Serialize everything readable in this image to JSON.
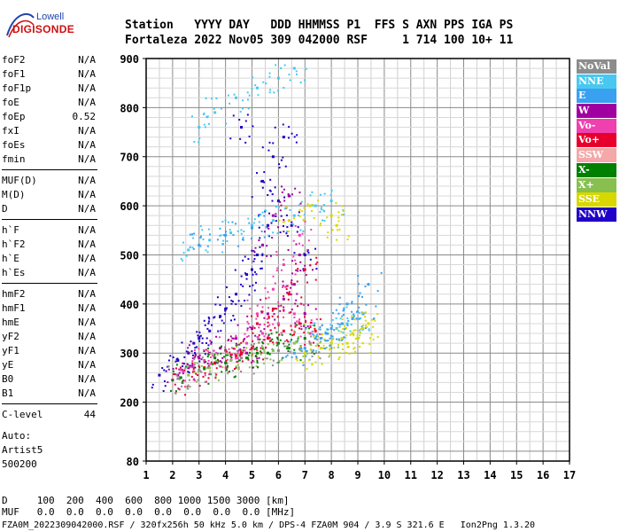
{
  "logo": {
    "line1": "Lowell",
    "line2": "DIGISONDE"
  },
  "header": {
    "row1": "Station   YYYY DAY   DDD HHMMSS P1  FFS S AXN PPS IGA PS",
    "row2": "Fortaleza 2022 Nov05 309 042000 RSF     1 714 100 10+ 11"
  },
  "params": {
    "groups": [
      [
        [
          "foF2",
          "N/A"
        ],
        [
          "foF1",
          "N/A"
        ],
        [
          "foF1p",
          "N/A"
        ],
        [
          "foE",
          "N/A"
        ],
        [
          "foEp",
          "0.52"
        ],
        [
          "fxI",
          "N/A"
        ],
        [
          "foEs",
          "N/A"
        ],
        [
          "fmin",
          "N/A"
        ]
      ],
      [
        [
          "MUF(D)",
          "N/A"
        ],
        [
          "M(D)",
          "N/A"
        ],
        [
          "D",
          "N/A"
        ]
      ],
      [
        [
          "h`F",
          "N/A"
        ],
        [
          "h`F2",
          "N/A"
        ],
        [
          "h`E",
          "N/A"
        ],
        [
          "h`Es",
          "N/A"
        ]
      ],
      [
        [
          "hmF2",
          "N/A"
        ],
        [
          "hmF1",
          "N/A"
        ],
        [
          "hmE",
          "N/A"
        ],
        [
          "yF2",
          "N/A"
        ],
        [
          "yF1",
          "N/A"
        ],
        [
          "yE",
          "N/A"
        ],
        [
          "B0",
          "N/A"
        ],
        [
          "B1",
          "N/A"
        ]
      ],
      [
        [
          "C-level",
          "44"
        ]
      ]
    ]
  },
  "auto": {
    "line1": "Auto:",
    "line2": "Artist5",
    "line3": "500200"
  },
  "legend": [
    {
      "label": "NoVal",
      "color": "#8c8c8c"
    },
    {
      "label": "NNE",
      "color": "#48c8f0"
    },
    {
      "label": "E",
      "color": "#3aa0f0"
    },
    {
      "label": "W",
      "color": "#a000a0"
    },
    {
      "label": "Vo-",
      "color": "#f040b0"
    },
    {
      "label": "Vo+",
      "color": "#e8002c"
    },
    {
      "label": "SSW",
      "color": "#f4a8a8"
    },
    {
      "label": "X-",
      "color": "#008000"
    },
    {
      "label": "X+",
      "color": "#88c050"
    },
    {
      "label": "SSE",
      "color": "#d8d800"
    },
    {
      "label": "NNW",
      "color": "#2000c8"
    }
  ],
  "footer": {
    "d_row": "D     100  200  400  600  800 1000 1500 3000 [km]",
    "muf_row": "MUF   0.0  0.0  0.0  0.0  0.0  0.0  0.0  0.0 [MHz]",
    "file_line": "FZA0M_2022309042000.RSF / 320fx256h 50 kHz 5.0 km / DPS-4 FZA0M 904 / 3.9 S 321.6 E   Ion2Png 1.3.20"
  },
  "chart_data": {
    "type": "scatter",
    "xlim": [
      1,
      17
    ],
    "ylim": [
      80,
      900
    ],
    "x_ticks": [
      1,
      2,
      3,
      4,
      5,
      6,
      7,
      8,
      9,
      10,
      11,
      12,
      13,
      14,
      15,
      16,
      17
    ],
    "y_ticks": [
      80,
      200,
      300,
      400,
      500,
      600,
      700,
      800,
      900
    ],
    "grid": true,
    "legend_position": "right",
    "series": [
      {
        "name": "NNW",
        "color": "#2000c8",
        "points": [
          [
            1.5,
            255
          ],
          [
            2.2,
            285
          ],
          [
            2.8,
            320
          ],
          [
            3.4,
            345
          ],
          [
            3.8,
            375
          ],
          [
            4.4,
            420
          ],
          [
            4.8,
            460
          ],
          [
            5.2,
            500
          ],
          [
            5.6,
            560
          ],
          [
            6.0,
            610
          ],
          [
            6.5,
            560
          ],
          [
            7.0,
            500
          ],
          [
            3.0,
            330
          ],
          [
            2.6,
            300
          ],
          [
            4.0,
            390
          ],
          [
            5.0,
            470
          ],
          [
            5.4,
            650
          ],
          [
            5.8,
            700
          ],
          [
            6.2,
            740
          ],
          [
            4.6,
            760
          ]
        ]
      },
      {
        "name": "W",
        "color": "#a000a0",
        "points": [
          [
            2.2,
            255
          ],
          [
            3.0,
            290
          ],
          [
            3.8,
            310
          ],
          [
            4.4,
            330
          ],
          [
            5.0,
            350
          ],
          [
            5.6,
            380
          ],
          [
            6.2,
            410
          ],
          [
            6.6,
            440
          ],
          [
            7.0,
            380
          ],
          [
            5.4,
            520
          ],
          [
            5.8,
            580
          ],
          [
            6.4,
            620
          ],
          [
            6.8,
            500
          ],
          [
            4.8,
            300
          ],
          [
            3.4,
            300
          ],
          [
            2.6,
            270
          ]
        ]
      },
      {
        "name": "Vo-",
        "color": "#f040b0",
        "points": [
          [
            2.4,
            262
          ],
          [
            3.2,
            285
          ],
          [
            4.0,
            305
          ],
          [
            4.8,
            320
          ],
          [
            5.4,
            340
          ],
          [
            6.0,
            360
          ],
          [
            6.6,
            380
          ],
          [
            7.2,
            340
          ],
          [
            5.2,
            380
          ],
          [
            5.8,
            430
          ],
          [
            6.2,
            480
          ],
          [
            6.8,
            540
          ],
          [
            4.4,
            290
          ],
          [
            3.6,
            280
          ]
        ]
      },
      {
        "name": "Vo+",
        "color": "#e8002c",
        "points": [
          [
            2.0,
            245
          ],
          [
            2.8,
            262
          ],
          [
            3.6,
            280
          ],
          [
            4.4,
            295
          ],
          [
            5.0,
            310
          ],
          [
            5.6,
            330
          ],
          [
            6.2,
            345
          ],
          [
            6.8,
            360
          ],
          [
            7.4,
            345
          ],
          [
            5.2,
            360
          ],
          [
            5.8,
            390
          ],
          [
            6.4,
            420
          ],
          [
            7.0,
            470
          ],
          [
            4.6,
            300
          ],
          [
            3.2,
            270
          ]
        ]
      },
      {
        "name": "X-",
        "color": "#008000",
        "points": [
          [
            2.3,
            250
          ],
          [
            3.2,
            268
          ],
          [
            4.0,
            280
          ],
          [
            4.8,
            290
          ],
          [
            5.6,
            300
          ],
          [
            6.4,
            310
          ],
          [
            7.0,
            330
          ],
          [
            3.6,
            290
          ],
          [
            5.2,
            300
          ],
          [
            6.0,
            320
          ]
        ]
      },
      {
        "name": "X+",
        "color": "#88c050",
        "points": [
          [
            2.6,
            255
          ],
          [
            3.4,
            270
          ],
          [
            4.2,
            285
          ],
          [
            5.0,
            295
          ],
          [
            5.8,
            305
          ],
          [
            6.6,
            320
          ],
          [
            7.4,
            330
          ],
          [
            8.0,
            320
          ]
        ]
      },
      {
        "name": "NNE",
        "color": "#48c8f0",
        "points": [
          [
            2.6,
            510
          ],
          [
            3.4,
            530
          ],
          [
            4.2,
            545
          ],
          [
            5.0,
            560
          ],
          [
            5.8,
            570
          ],
          [
            6.6,
            580
          ],
          [
            7.4,
            600
          ],
          [
            8.0,
            610
          ],
          [
            3.0,
            760
          ],
          [
            3.6,
            790
          ],
          [
            4.4,
            820
          ],
          [
            5.2,
            840
          ],
          [
            6.0,
            860
          ],
          [
            6.6,
            880
          ],
          [
            7.4,
            330
          ],
          [
            8.2,
            350
          ],
          [
            8.6,
            360
          ],
          [
            9.0,
            370
          ]
        ]
      },
      {
        "name": "E",
        "color": "#3aa0f0",
        "points": [
          [
            7.0,
            310
          ],
          [
            7.6,
            330
          ],
          [
            8.0,
            350
          ],
          [
            8.4,
            360
          ],
          [
            8.8,
            370
          ],
          [
            9.2,
            380
          ],
          [
            9.4,
            440
          ],
          [
            8.6,
            400
          ],
          [
            7.8,
            340
          ],
          [
            6.6,
            300
          ],
          [
            3.0,
            520
          ],
          [
            4.0,
            540
          ],
          [
            5.0,
            555
          ]
        ]
      },
      {
        "name": "SSE",
        "color": "#d8d800",
        "points": [
          [
            7.0,
            300
          ],
          [
            7.6,
            310
          ],
          [
            8.0,
            320
          ],
          [
            8.4,
            330
          ],
          [
            8.8,
            340
          ],
          [
            9.2,
            350
          ],
          [
            9.4,
            360
          ],
          [
            8.2,
            560
          ],
          [
            8.0,
            580
          ],
          [
            7.2,
            600
          ],
          [
            6.4,
            570
          ],
          [
            8.6,
            320
          ],
          [
            9.0,
            330
          ]
        ]
      },
      {
        "name": "NoVal",
        "color": "#8c8c8c",
        "points": [
          [
            2.2,
            248
          ],
          [
            3.0,
            265
          ],
          [
            4.6,
            290
          ],
          [
            6.0,
            305
          ],
          [
            7.2,
            320
          ]
        ]
      }
    ]
  }
}
